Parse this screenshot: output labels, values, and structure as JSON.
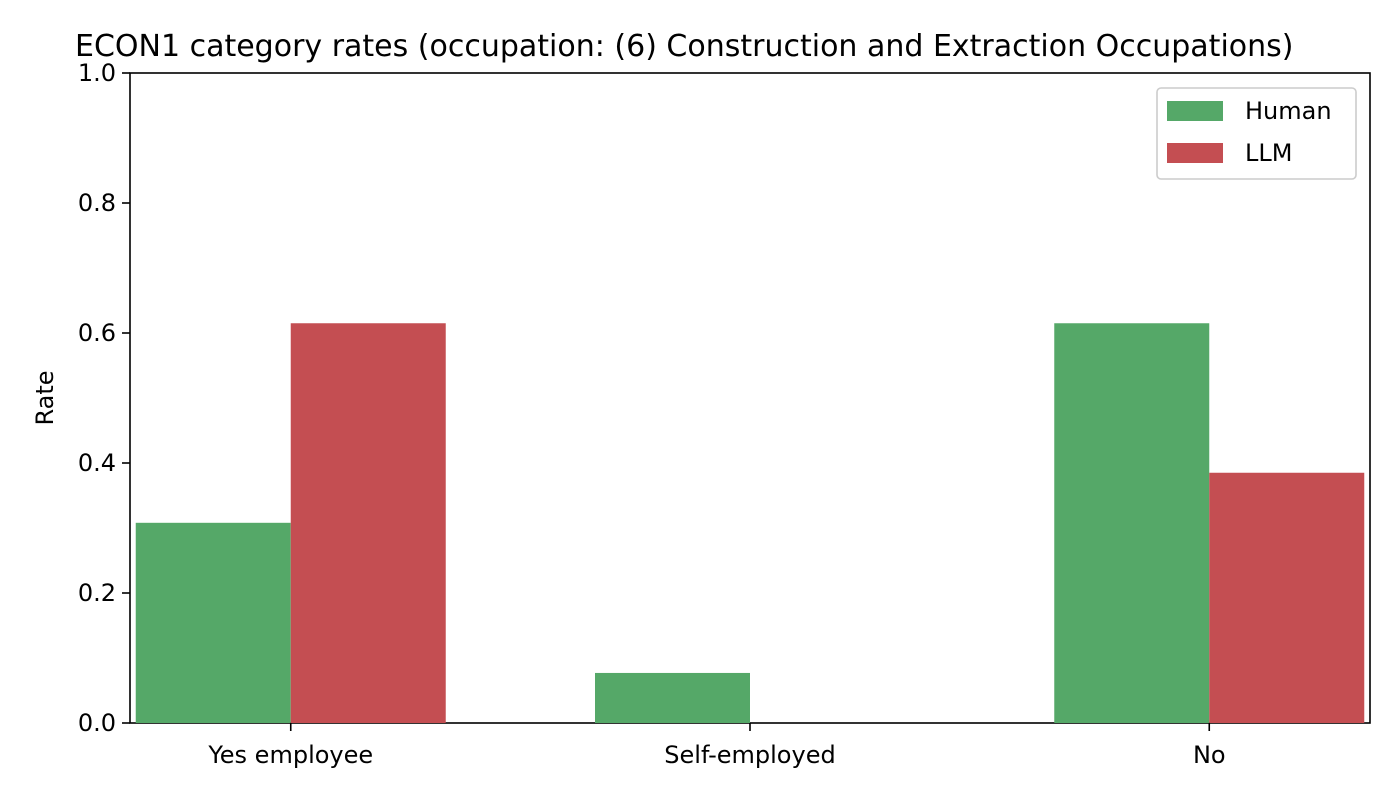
{
  "chart_data": {
    "type": "bar",
    "title": "ECON1 category rates (occupation: (6) Construction and Extraction Occupations)",
    "xlabel": "",
    "ylabel": "Rate",
    "categories": [
      "Yes employee",
      "Self-employed",
      "No"
    ],
    "series": [
      {
        "name": "Human",
        "values": [
          0.308,
          0.077,
          0.615
        ],
        "color": "#55a868"
      },
      {
        "name": "LLM",
        "values": [
          0.615,
          0.0,
          0.385
        ],
        "color": "#c44e52"
      }
    ],
    "ylim": [
      0,
      1.0
    ],
    "yticks": [
      "0.0",
      "0.2",
      "0.4",
      "0.6",
      "0.8",
      "1.0"
    ],
    "grid": false,
    "legend_position": "top-right"
  }
}
